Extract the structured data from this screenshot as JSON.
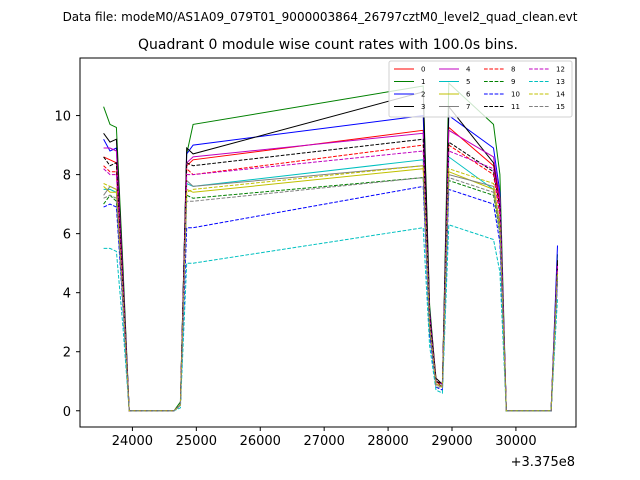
{
  "chart_data": {
    "type": "line",
    "suptitle": "Data file: modeM0/AS1A09_079T01_9000003864_26797cztM0_level2_quad_clean.evt",
    "title": "Quadrant 0 module wise count rates with 100.0s bins.",
    "xlabel": "",
    "ylabel": "",
    "x_offset_label": "+3.375e8",
    "x_ticks": [
      24000,
      25000,
      26000,
      27000,
      28000,
      29000,
      30000
    ],
    "y_ticks": [
      0,
      2,
      4,
      6,
      8,
      10
    ],
    "xlim": [
      23180,
      30940
    ],
    "ylim": [
      -0.55,
      11.95
    ],
    "legend_position": "top-right",
    "x": [
      23550,
      23650,
      23750,
      23850,
      23950,
      24650,
      24750,
      24850,
      24950,
      28550,
      28650,
      28750,
      28850,
      28950,
      29650,
      29750,
      29850,
      30550,
      30650
    ],
    "series": [
      {
        "name": "0",
        "color": "#ff0000",
        "dash": "solid",
        "values": [
          8.6,
          8.5,
          8.4,
          4.3,
          0,
          0,
          0.2,
          8.3,
          8.5,
          9.5,
          3.2,
          1.0,
          0.9,
          9.6,
          8.3,
          7.0,
          0,
          0,
          5.0
        ]
      },
      {
        "name": "1",
        "color": "#008000",
        "dash": "solid",
        "values": [
          10.3,
          9.7,
          9.6,
          5.0,
          0,
          0,
          0.3,
          8.7,
          9.7,
          11.0,
          3.6,
          1.0,
          0.8,
          11.1,
          9.7,
          8.0,
          0,
          0,
          5.3
        ]
      },
      {
        "name": "2",
        "color": "#0000ff",
        "dash": "solid",
        "values": [
          9.2,
          8.8,
          8.9,
          4.6,
          0,
          0,
          0.2,
          8.7,
          9.0,
          10.0,
          3.4,
          0.9,
          0.8,
          10.0,
          8.9,
          7.4,
          0,
          0,
          5.6
        ]
      },
      {
        "name": "3",
        "color": "#000000",
        "dash": "solid",
        "values": [
          9.4,
          9.1,
          9.2,
          4.7,
          0,
          0,
          0.2,
          8.9,
          8.7,
          10.8,
          3.4,
          1.1,
          0.9,
          10.3,
          8.4,
          7.2,
          0,
          0,
          5.1
        ]
      },
      {
        "name": "4",
        "color": "#c000c0",
        "dash": "solid",
        "values": [
          8.9,
          8.9,
          8.8,
          4.5,
          0,
          0,
          0.2,
          8.4,
          8.6,
          9.4,
          3.3,
          1.0,
          0.9,
          9.5,
          8.6,
          7.2,
          0,
          0,
          5.0
        ]
      },
      {
        "name": "5",
        "color": "#00c0c0",
        "dash": "solid",
        "values": [
          7.5,
          7.5,
          7.4,
          3.9,
          0,
          0,
          0.2,
          7.7,
          7.6,
          8.5,
          2.9,
          0.9,
          0.8,
          8.6,
          7.5,
          6.3,
          0,
          0,
          4.7
        ]
      },
      {
        "name": "6",
        "color": "#c0c000",
        "dash": "solid",
        "values": [
          7.6,
          7.4,
          7.4,
          3.8,
          0,
          0,
          0.2,
          7.5,
          7.4,
          8.2,
          2.8,
          0.9,
          0.8,
          8.1,
          7.5,
          6.1,
          0,
          0,
          4.6
        ]
      },
      {
        "name": "7",
        "color": "#808080",
        "dash": "solid",
        "values": [
          7.3,
          7.6,
          7.5,
          3.9,
          0,
          0,
          0.2,
          7.8,
          7.6,
          8.3,
          2.9,
          0.9,
          0.8,
          8.0,
          7.6,
          6.3,
          0,
          0,
          4.8
        ]
      },
      {
        "name": "8",
        "color": "#ff0000",
        "dash": "dashed",
        "values": [
          8.3,
          8.1,
          8.1,
          4.2,
          0,
          0,
          0.2,
          8.2,
          8.0,
          9.0,
          3.1,
          1.0,
          0.8,
          9.0,
          8.0,
          6.6,
          0,
          0,
          4.9
        ]
      },
      {
        "name": "9",
        "color": "#008000",
        "dash": "dashed",
        "values": [
          7.0,
          7.3,
          7.1,
          3.7,
          0,
          0,
          0.2,
          7.3,
          7.2,
          7.9,
          2.7,
          0.9,
          0.8,
          7.8,
          7.3,
          6.0,
          0,
          0,
          4.5
        ]
      },
      {
        "name": "10",
        "color": "#0000ff",
        "dash": "dashed",
        "values": [
          6.9,
          7.0,
          6.9,
          3.6,
          0,
          0,
          0.2,
          6.2,
          6.2,
          7.6,
          2.6,
          0.8,
          0.7,
          7.5,
          7.0,
          5.7,
          0,
          0,
          4.4
        ]
      },
      {
        "name": "11",
        "color": "#000000",
        "dash": "dashed",
        "values": [
          8.6,
          8.3,
          8.4,
          4.3,
          0,
          0,
          0.2,
          8.4,
          8.3,
          9.2,
          3.2,
          1.0,
          0.9,
          9.1,
          8.1,
          6.9,
          0,
          0,
          5.0
        ]
      },
      {
        "name": "12",
        "color": "#c000c0",
        "dash": "dashed",
        "values": [
          8.2,
          8.0,
          8.0,
          4.1,
          0,
          0,
          0.2,
          8.0,
          8.0,
          8.8,
          3.0,
          0.9,
          0.8,
          8.8,
          8.2,
          6.7,
          0,
          0,
          4.9
        ]
      },
      {
        "name": "13",
        "color": "#00c0c0",
        "dash": "dashed",
        "values": [
          5.5,
          5.5,
          5.4,
          2.9,
          0,
          0,
          0.1,
          5.0,
          5.0,
          6.2,
          2.2,
          0.7,
          0.6,
          6.3,
          5.8,
          4.7,
          0,
          0,
          3.8
        ]
      },
      {
        "name": "14",
        "color": "#c0c000",
        "dash": "dashed",
        "values": [
          7.7,
          7.6,
          7.5,
          3.9,
          0,
          0,
          0.2,
          7.4,
          7.5,
          8.3,
          2.9,
          0.9,
          0.8,
          8.2,
          7.7,
          6.3,
          0,
          0,
          4.7
        ]
      },
      {
        "name": "15",
        "color": "#808080",
        "dash": "dashed",
        "values": [
          7.2,
          7.3,
          7.2,
          3.7,
          0,
          0,
          0.2,
          7.1,
          7.1,
          7.9,
          2.8,
          0.8,
          0.8,
          7.9,
          7.4,
          6.1,
          0,
          0,
          4.6
        ]
      }
    ]
  }
}
